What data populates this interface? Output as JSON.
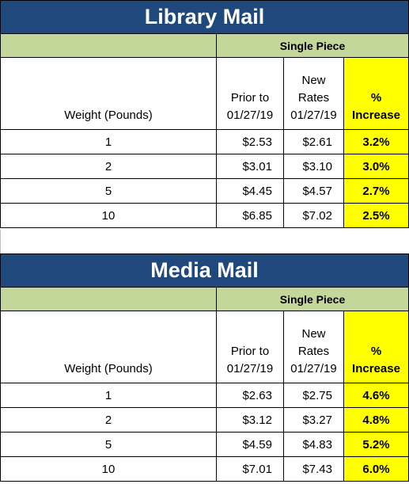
{
  "tables": [
    {
      "title": "Library Mail",
      "group_header": "Single Piece",
      "col_weight": "Weight (Pounds)",
      "col_prior_1": "Prior to",
      "col_prior_2": "01/27/19",
      "col_new_1": "New",
      "col_new_2": "Rates",
      "col_new_3": "01/27/19",
      "col_inc_1": "%",
      "col_inc_2": "Increase",
      "rows": [
        {
          "weight": "1",
          "prior": "$2.53",
          "new": "$2.61",
          "increase": "3.2%"
        },
        {
          "weight": "2",
          "prior": "$3.01",
          "new": "$3.10",
          "increase": "3.0%"
        },
        {
          "weight": "5",
          "prior": "$4.45",
          "new": "$4.57",
          "increase": "2.7%"
        },
        {
          "weight": "10",
          "prior": "$6.85",
          "new": "$7.02",
          "increase": "2.5%"
        }
      ]
    },
    {
      "title": "Media Mail",
      "group_header": "Single Piece",
      "col_weight": "Weight (Pounds)",
      "col_prior_1": "Prior to",
      "col_prior_2": "01/27/19",
      "col_new_1": "New",
      "col_new_2": "Rates",
      "col_new_3": "01/27/19",
      "col_inc_1": "%",
      "col_inc_2": "Increase",
      "rows": [
        {
          "weight": "1",
          "prior": "$2.63",
          "new": "$2.75",
          "increase": "4.6%"
        },
        {
          "weight": "2",
          "prior": "$3.12",
          "new": "$3.27",
          "increase": "4.8%"
        },
        {
          "weight": "5",
          "prior": "$4.59",
          "new": "$4.83",
          "increase": "5.2%"
        },
        {
          "weight": "10",
          "prior": "$7.01",
          "new": "$7.43",
          "increase": "6.0%"
        }
      ]
    }
  ],
  "colors": {
    "title_bg": "#1f497d",
    "subheader_bg": "#c4d79b",
    "highlight": "#ffff00"
  }
}
